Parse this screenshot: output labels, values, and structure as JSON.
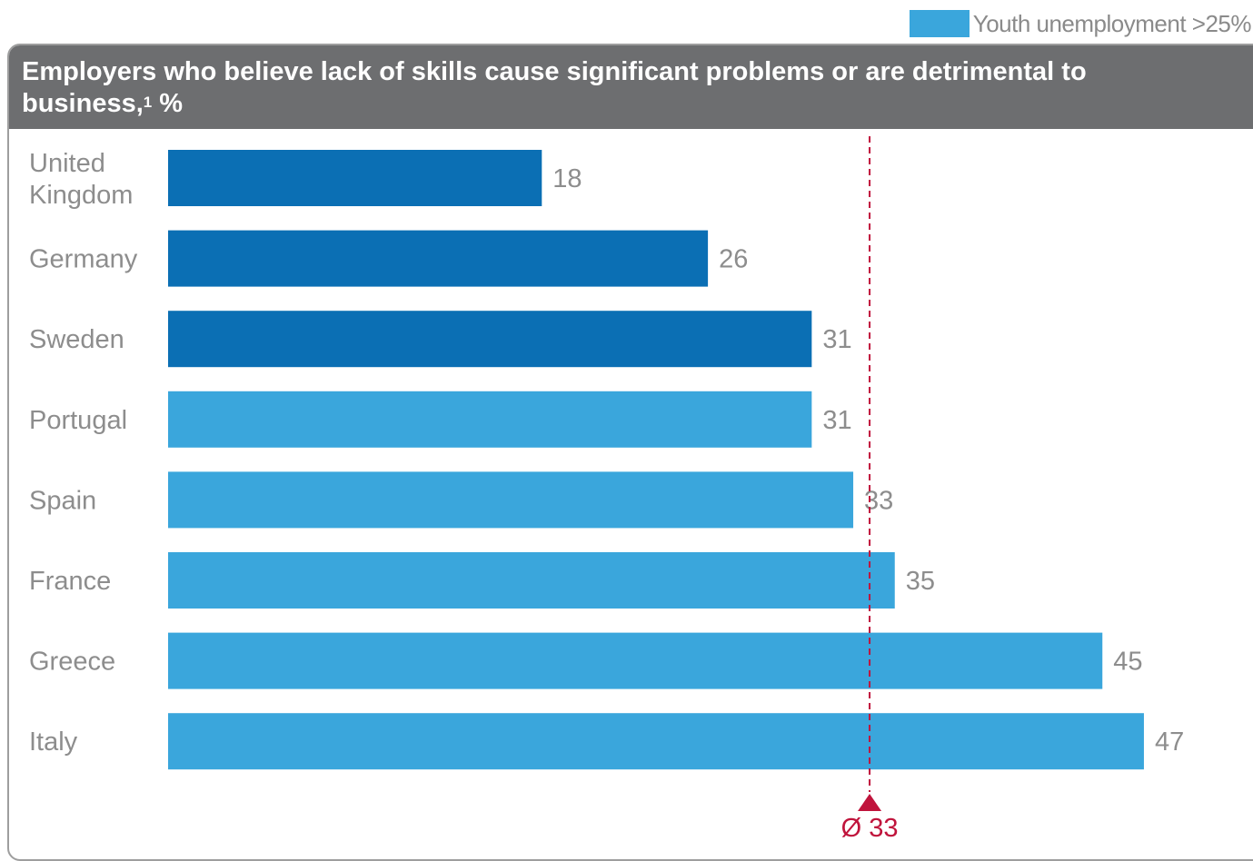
{
  "legend": {
    "label": "Youth unemployment >25%",
    "color": "#3aa6dc"
  },
  "colors": {
    "default_bar": "#0b6fb4",
    "highlight_bar": "#3aa6dc",
    "average_line": "#c0143c",
    "header_bg": "#6d6e70"
  },
  "chart_data": {
    "type": "bar",
    "orientation": "horizontal",
    "title_main": "Employers who believe lack of skills cause significant problems or are detrimental to business,",
    "title_footnote": "1",
    "title_unit": " %",
    "categories": [
      "United Kingdom",
      "Germany",
      "Sweden",
      "Portugal",
      "Spain",
      "France",
      "Greece",
      "Italy"
    ],
    "category_lines": [
      [
        "United",
        "Kingdom"
      ],
      [
        "Germany"
      ],
      [
        "Sweden"
      ],
      [
        "Portugal"
      ],
      [
        "Spain"
      ],
      [
        "France"
      ],
      [
        "Greece"
      ],
      [
        "Italy"
      ]
    ],
    "values": [
      18,
      26,
      31,
      31,
      33,
      35,
      45,
      47
    ],
    "youth_unemployment_over_25": [
      false,
      false,
      false,
      true,
      true,
      true,
      true,
      true
    ],
    "average": {
      "value": 33,
      "label": "Ø 33"
    },
    "xlim": [
      0,
      47
    ],
    "grid": false,
    "legend_position": "top-right"
  }
}
